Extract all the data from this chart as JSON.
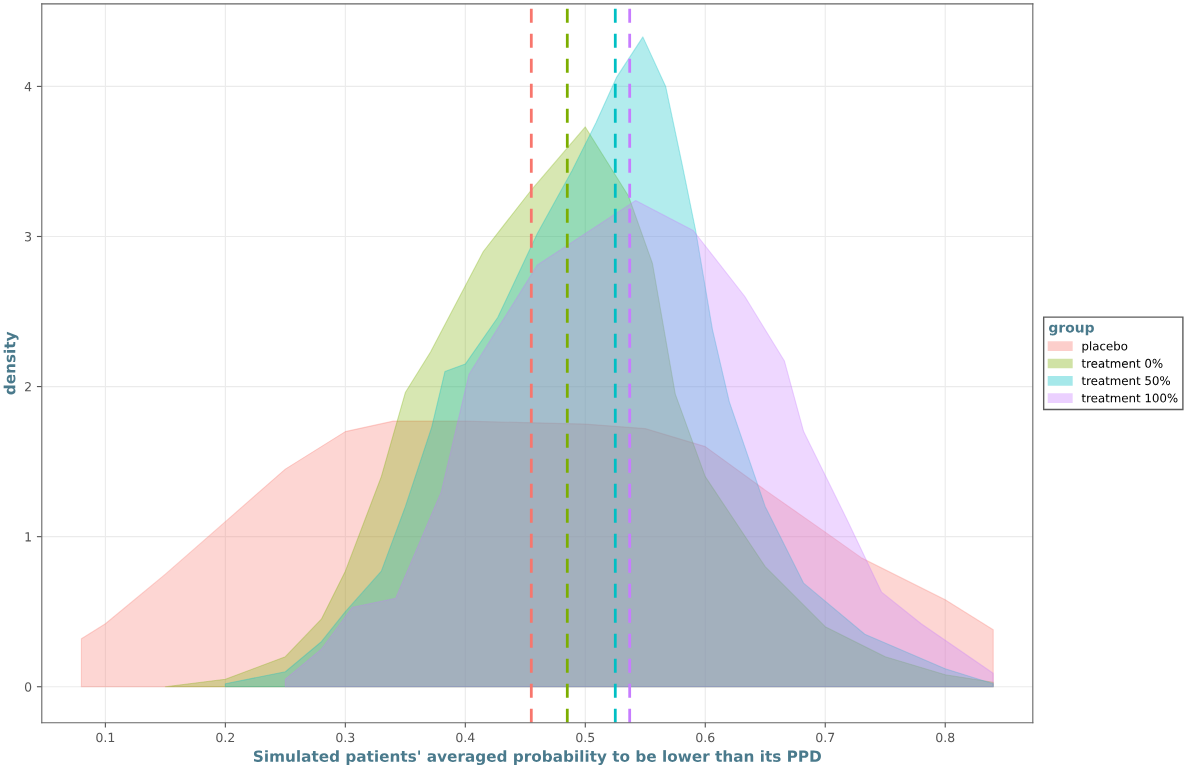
{
  "chart_data": {
    "type": "area",
    "xlabel": "Simulated patients' averaged probability to be lower than its PPD",
    "ylabel": "density",
    "legend_title": "group",
    "legend": "right",
    "grid": true,
    "xlim": [
      0.047,
      0.873
    ],
    "ylim": [
      -0.24,
      4.55
    ],
    "xticks": [
      0.1,
      0.2,
      0.3,
      0.4,
      0.5,
      0.6,
      0.7,
      0.8
    ],
    "yticks": [
      0,
      1,
      2,
      3,
      4
    ],
    "series": [
      {
        "name": "placebo",
        "color": "#f8766d",
        "x": [
          0.08,
          0.1,
          0.15,
          0.2,
          0.25,
          0.3,
          0.34,
          0.4,
          0.45,
          0.5,
          0.55,
          0.6,
          0.65,
          0.7,
          0.73,
          0.8,
          0.84
        ],
        "values": [
          0.32,
          0.42,
          0.75,
          1.1,
          1.45,
          1.7,
          1.77,
          1.77,
          1.76,
          1.75,
          1.72,
          1.6,
          1.31,
          1.03,
          0.86,
          0.58,
          0.38
        ]
      },
      {
        "name": "treatment 0%",
        "color": "#7cae00",
        "x": [
          0.15,
          0.2,
          0.25,
          0.28,
          0.3,
          0.33,
          0.35,
          0.371,
          0.415,
          0.454,
          0.5,
          0.536,
          0.556,
          0.575,
          0.6,
          0.65,
          0.7,
          0.75,
          0.8,
          0.84
        ],
        "values": [
          0,
          0.05,
          0.2,
          0.45,
          0.77,
          1.4,
          1.96,
          2.23,
          2.9,
          3.3,
          3.73,
          3.27,
          2.82,
          1.95,
          1.4,
          0.8,
          0.4,
          0.2,
          0.08,
          0.03
        ]
      },
      {
        "name": "treatment 50%",
        "color": "#00bfc4",
        "x": [
          0.2,
          0.25,
          0.28,
          0.3,
          0.33,
          0.35,
          0.372,
          0.383,
          0.4,
          0.427,
          0.46,
          0.489,
          0.509,
          0.526,
          0.548,
          0.567,
          0.581,
          0.592,
          0.606,
          0.62,
          0.65,
          0.682,
          0.733,
          0.8,
          0.84
        ],
        "values": [
          0.02,
          0.1,
          0.3,
          0.5,
          0.77,
          1.2,
          1.73,
          2.1,
          2.15,
          2.46,
          3.02,
          3.44,
          3.76,
          4.06,
          4.33,
          4.0,
          3.47,
          3.04,
          2.38,
          1.9,
          1.2,
          0.69,
          0.35,
          0.12,
          0.02
        ]
      },
      {
        "name": "treatment 100%",
        "color": "#c77cff",
        "x": [
          0.25,
          0.28,
          0.306,
          0.342,
          0.38,
          0.403,
          0.46,
          0.542,
          0.59,
          0.633,
          0.666,
          0.682,
          0.719,
          0.747,
          0.78,
          0.84
        ],
        "values": [
          0.05,
          0.25,
          0.53,
          0.59,
          1.3,
          2.08,
          2.81,
          3.24,
          3.04,
          2.6,
          2.17,
          1.7,
          1.1,
          0.63,
          0.42,
          0.09
        ]
      }
    ],
    "ref_lines": [
      {
        "axis": "x",
        "value": 0.455,
        "color": "#f8766d",
        "line_style": "dashed"
      },
      {
        "axis": "x",
        "value": 0.485,
        "color": "#7cae00",
        "line_style": "dashed"
      },
      {
        "axis": "x",
        "value": 0.525,
        "color": "#00bfc4",
        "line_style": "dashed"
      },
      {
        "axis": "x",
        "value": 0.537,
        "color": "#c77cff",
        "line_style": "dashed"
      }
    ]
  }
}
